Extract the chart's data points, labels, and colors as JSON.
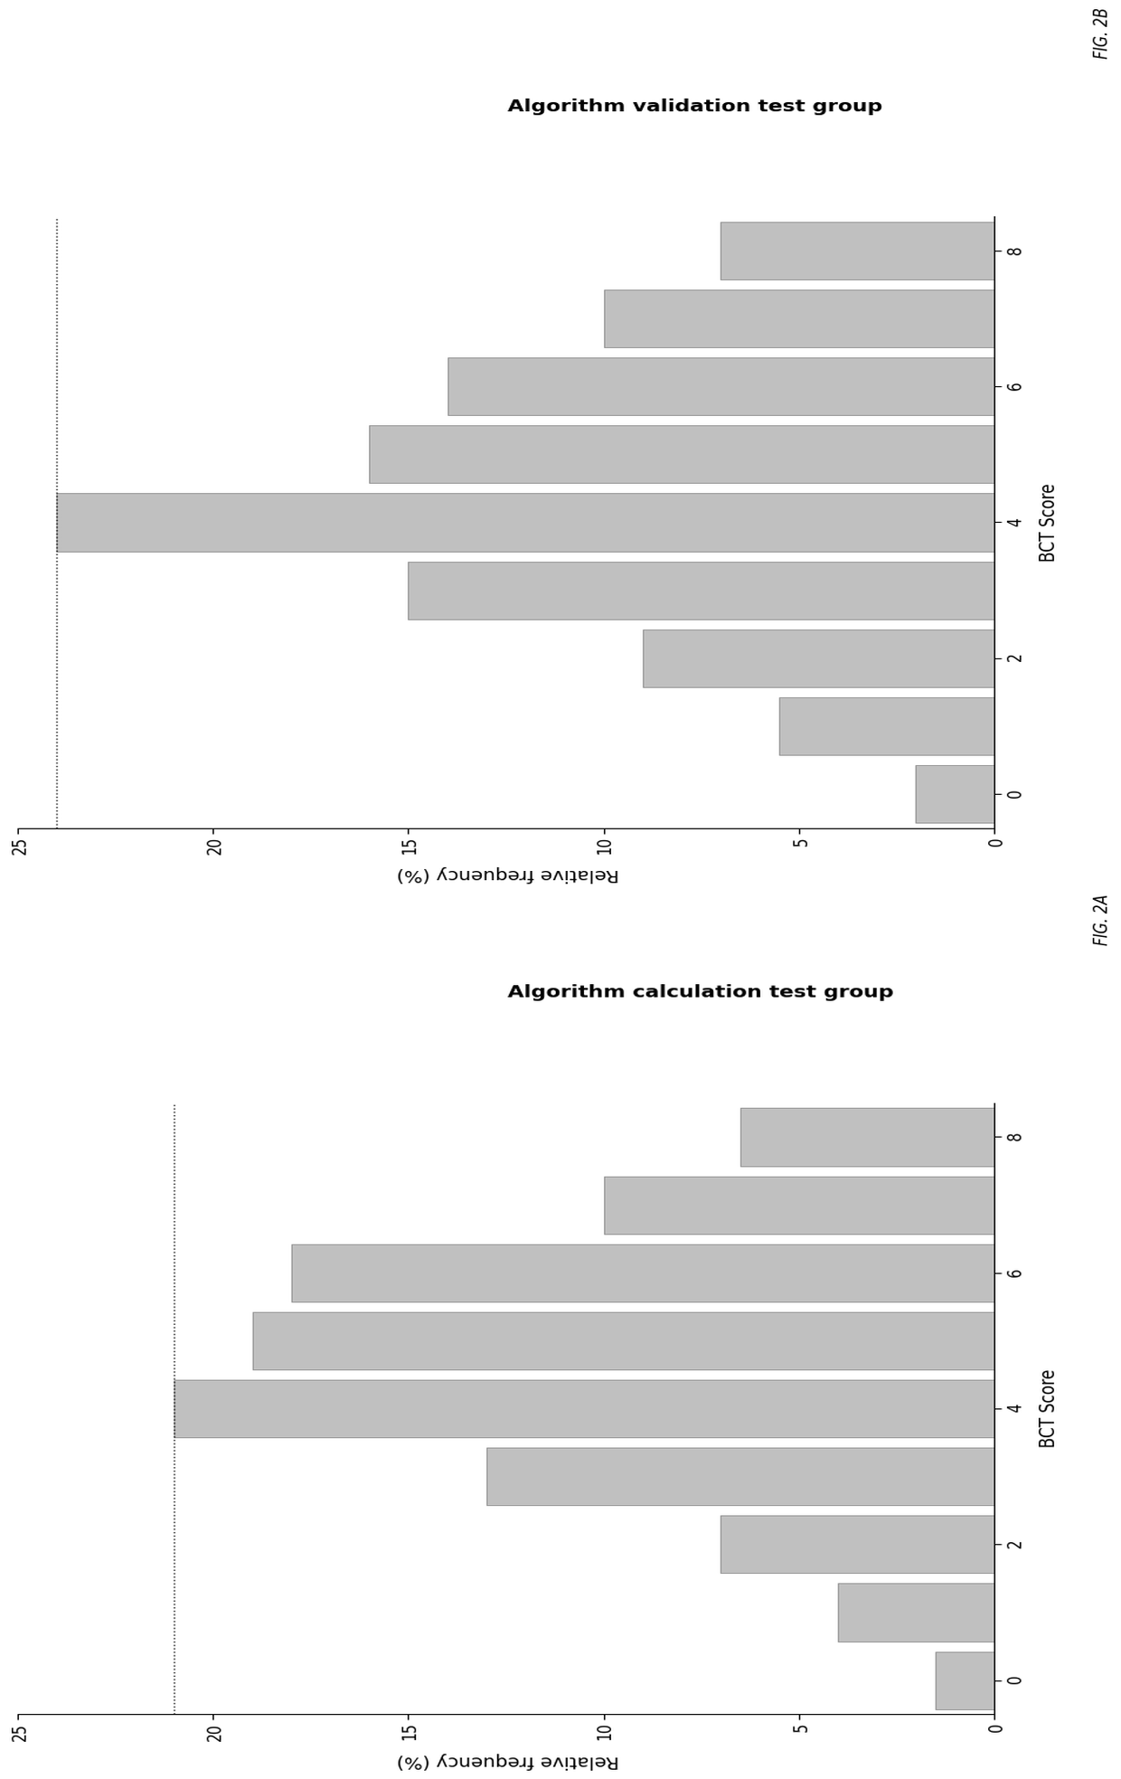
{
  "fig_width": 19.67,
  "fig_height": 12.4,
  "background_color": "#ffffff",
  "chart_A": {
    "title": "Algorithm calculation test group",
    "fig_label": "FIG. 2A",
    "xlabel": "BCT Score",
    "ylabel": "Relative frequency (%)",
    "xlim": [
      0,
      8
    ],
    "ylim": [
      0,
      25
    ],
    "yticks": [
      0,
      5,
      10,
      15,
      20,
      25
    ],
    "xticks": [
      0,
      2,
      4,
      6,
      8
    ],
    "bar_heights": [
      1.5,
      4.0,
      7.0,
      13.0,
      21.0,
      19.0,
      18.0,
      10.0,
      6.5
    ],
    "bar_positions": [
      0,
      1,
      2,
      3,
      4,
      5,
      6,
      7,
      8
    ],
    "dashed_line_y": 21.0,
    "bar_color": "#c0c0c0",
    "bar_edgecolor": "#999999"
  },
  "chart_B": {
    "title": "Algorithm validation test group",
    "fig_label": "FIG. 2B",
    "xlabel": "BCT Score",
    "ylabel": "Relative frequency (%)",
    "xlim": [
      0,
      8
    ],
    "ylim": [
      0,
      25
    ],
    "yticks": [
      0,
      5,
      10,
      15,
      20,
      25
    ],
    "xticks": [
      0,
      2,
      4,
      6,
      8
    ],
    "bar_heights": [
      2.0,
      5.5,
      9.0,
      15.0,
      24.0,
      16.0,
      14.0,
      10.0,
      7.0
    ],
    "bar_positions": [
      0,
      1,
      2,
      3,
      4,
      5,
      6,
      7,
      8
    ],
    "dashed_line_y": 24.0,
    "bar_color": "#c0c0c0",
    "bar_edgecolor": "#999999"
  }
}
